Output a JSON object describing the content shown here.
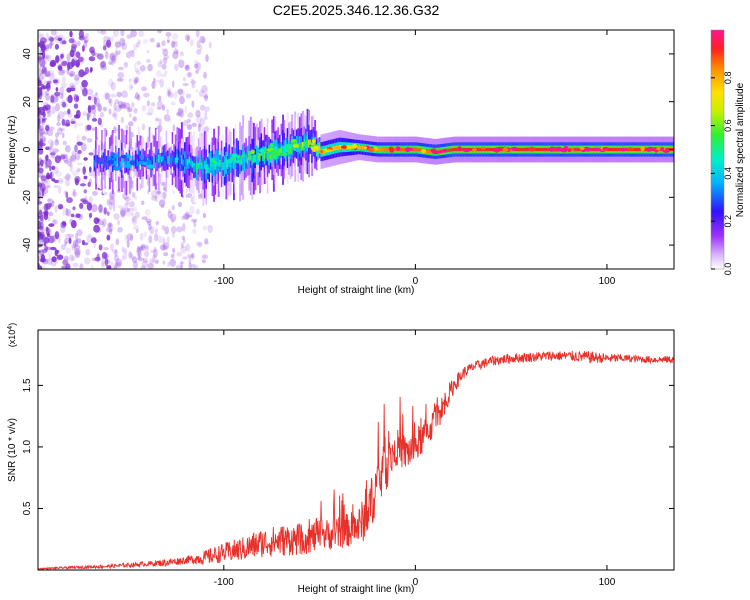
{
  "title": "C2E5.2025.346.12.36.G32",
  "colors": {
    "snr_line": "#e8302a",
    "axis": "#000000",
    "background": "#ffffff",
    "ridge": "#e8302a",
    "noise": "#9a52e6",
    "scatter": "#7d2ed1"
  },
  "chart_data": [
    {
      "type": "heatmap",
      "name": "spectrogram",
      "xlabel": "Height of straight line (km)",
      "ylabel": "Frequency (Hz)",
      "xlim": [
        -197,
        135
      ],
      "ylim": [
        -50,
        50
      ],
      "xticks": [
        -100,
        0,
        100
      ],
      "yticks": [
        -40,
        -20,
        0,
        20,
        40
      ],
      "xtick_labels": [
        "-100",
        "0",
        "100"
      ],
      "ytick_labels": [
        "-40",
        "-20",
        "0",
        "20",
        "40"
      ],
      "colorbar": {
        "label": "Normalized spectral amplitude",
        "range": [
          0,
          1
        ],
        "ticks": [
          0.0,
          0.2,
          0.4,
          0.6,
          0.8
        ],
        "tick_labels": [
          "0.0",
          "0.2",
          "0.4",
          "0.6",
          "0.8"
        ]
      },
      "ridge": {
        "description": "Dominant frequency near 0 Hz",
        "x": [
          -165,
          -150,
          -130,
          -110,
          -95,
          -80,
          -65,
          -55,
          -50,
          -40,
          -30,
          -20,
          -10,
          0,
          10,
          20,
          40,
          60,
          80,
          100,
          120,
          135
        ],
        "center_hz": [
          -5,
          -5,
          -4,
          -7,
          -5,
          -2,
          1,
          3,
          -1,
          1,
          1,
          0,
          0,
          0,
          -1,
          0,
          0,
          0,
          0,
          0,
          0,
          0
        ],
        "halfwidth_hz": [
          6,
          6,
          6,
          8,
          8,
          7,
          7,
          6,
          4,
          4,
          3,
          3,
          3,
          3,
          3,
          3,
          3,
          3,
          3,
          3,
          3,
          3
        ],
        "amplitude": [
          0.3,
          0.35,
          0.4,
          0.45,
          0.5,
          0.55,
          0.55,
          0.6,
          0.75,
          0.8,
          0.85,
          0.9,
          0.95,
          0.95,
          0.95,
          1.0,
          1.0,
          1.0,
          1.0,
          1.0,
          1.0,
          1.0
        ]
      }
    },
    {
      "type": "line",
      "name": "snr",
      "xlabel": "Height of straight line (km)",
      "ylabel": "SNR (10 * v/v)",
      "scale_label": "(x10",
      "scale_exp": "4",
      "scale_close": ")",
      "xlim": [
        -197,
        135
      ],
      "ylim": [
        0,
        1.95
      ],
      "xticks": [
        -100,
        0,
        100
      ],
      "yticks": [
        0.5,
        1.0,
        1.5
      ],
      "xtick_labels": [
        "-100",
        "0",
        "100"
      ],
      "ytick_labels": [
        "0.5",
        "1.0",
        "1.5"
      ],
      "units_multiplier": 10000,
      "series": [
        {
          "name": "SNR",
          "x": [
            -197,
            -180,
            -160,
            -140,
            -130,
            -120,
            -110,
            -100,
            -90,
            -80,
            -70,
            -60,
            -50,
            -40,
            -30,
            -25,
            -20,
            -15,
            -10,
            -5,
            0,
            5,
            10,
            15,
            20,
            25,
            30,
            40,
            50,
            60,
            70,
            80,
            90,
            100,
            110,
            120,
            135
          ],
          "y": [
            0.01,
            0.02,
            0.03,
            0.05,
            0.06,
            0.08,
            0.1,
            0.14,
            0.17,
            0.22,
            0.24,
            0.25,
            0.28,
            0.3,
            0.35,
            0.45,
            0.7,
            0.85,
            1.0,
            0.95,
            1.0,
            1.1,
            1.2,
            1.35,
            1.5,
            1.6,
            1.65,
            1.7,
            1.72,
            1.73,
            1.74,
            1.74,
            1.73,
            1.72,
            1.72,
            1.71,
            1.71
          ],
          "noise_amplitude": [
            0.005,
            0.01,
            0.015,
            0.02,
            0.03,
            0.03,
            0.06,
            0.08,
            0.1,
            0.12,
            0.13,
            0.13,
            0.13,
            0.13,
            0.15,
            0.2,
            0.22,
            0.2,
            0.15,
            0.15,
            0.15,
            0.13,
            0.12,
            0.1,
            0.07,
            0.05,
            0.04,
            0.04,
            0.04,
            0.04,
            0.04,
            0.04,
            0.05,
            0.04,
            0.03,
            0.03,
            0.03
          ]
        }
      ]
    }
  ]
}
